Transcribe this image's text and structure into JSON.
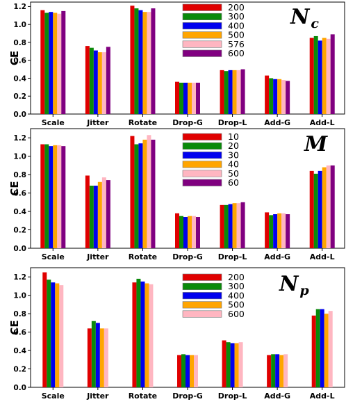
{
  "chart_data": [
    {
      "type": "bar",
      "title_main": "N",
      "title_sub": "c",
      "ylabel": "CE",
      "ylim": [
        0,
        1.25
      ],
      "yticks": [
        "0.0",
        "0.2",
        "0.4",
        "0.6",
        "0.8",
        "1.0",
        "1.2"
      ],
      "categories": [
        "Scale",
        "Jitter",
        "Rotate",
        "Drop-G",
        "Drop-L",
        "Add-G",
        "Add-L"
      ],
      "legend_position": "top-center",
      "series": [
        {
          "name": "200",
          "color": "#e00000",
          "values": [
            1.16,
            0.76,
            1.21,
            0.36,
            0.49,
            0.43,
            0.85
          ]
        },
        {
          "name": "300",
          "color": "#0a8a0a",
          "values": [
            1.13,
            0.74,
            1.18,
            0.35,
            0.48,
            0.4,
            0.87
          ]
        },
        {
          "name": "400",
          "color": "#0000ee",
          "values": [
            1.14,
            0.71,
            1.16,
            0.35,
            0.49,
            0.39,
            0.82
          ]
        },
        {
          "name": "500",
          "color": "#ffa500",
          "values": [
            1.13,
            0.69,
            1.14,
            0.35,
            0.49,
            0.39,
            0.85
          ]
        },
        {
          "name": "576",
          "color": "#ffb6c1",
          "values": [
            1.12,
            0.69,
            1.14,
            0.35,
            0.49,
            0.38,
            0.84
          ]
        },
        {
          "name": "600",
          "color": "#800080",
          "values": [
            1.15,
            0.75,
            1.18,
            0.35,
            0.5,
            0.37,
            0.89
          ]
        }
      ]
    },
    {
      "type": "bar",
      "title_main": "M",
      "title_sub": "",
      "ylabel": "CE",
      "ylim": [
        0,
        1.3
      ],
      "yticks": [
        "0.0",
        "0.2",
        "0.4",
        "0.6",
        "0.8",
        "1.0",
        "1.2"
      ],
      "categories": [
        "Scale",
        "Jitter",
        "Rotate",
        "Drop-G",
        "Drop-L",
        "Add-G",
        "Add-L"
      ],
      "legend_position": "top-center",
      "series": [
        {
          "name": "10",
          "color": "#e00000",
          "values": [
            1.13,
            0.79,
            1.22,
            0.38,
            0.47,
            0.39,
            0.84
          ]
        },
        {
          "name": "20",
          "color": "#0a8a0a",
          "values": [
            1.13,
            0.68,
            1.13,
            0.35,
            0.47,
            0.36,
            0.81
          ]
        },
        {
          "name": "30",
          "color": "#0000ee",
          "values": [
            1.11,
            0.68,
            1.14,
            0.34,
            0.48,
            0.37,
            0.84
          ]
        },
        {
          "name": "40",
          "color": "#ffa500",
          "values": [
            1.12,
            0.72,
            1.18,
            0.35,
            0.49,
            0.38,
            0.88
          ]
        },
        {
          "name": "50",
          "color": "#ffb6c1",
          "values": [
            1.12,
            0.77,
            1.23,
            0.35,
            0.49,
            0.38,
            0.9
          ]
        },
        {
          "name": "60",
          "color": "#800080",
          "values": [
            1.11,
            0.74,
            1.18,
            0.34,
            0.5,
            0.37,
            0.9
          ]
        }
      ]
    },
    {
      "type": "bar",
      "title_main": "N",
      "title_sub": "p",
      "ylabel": "CE",
      "ylim": [
        0,
        1.3
      ],
      "yticks": [
        "0.0",
        "0.2",
        "0.4",
        "0.6",
        "0.8",
        "1.0",
        "1.2"
      ],
      "categories": [
        "Scale",
        "Jitter",
        "Rotate",
        "Drop-G",
        "Drop-L",
        "Add-G",
        "Add-L"
      ],
      "legend_position": "top-center",
      "series": [
        {
          "name": "200",
          "color": "#e00000",
          "values": [
            1.25,
            0.64,
            1.14,
            0.35,
            0.51,
            0.35,
            0.78
          ]
        },
        {
          "name": "300",
          "color": "#0a8a0a",
          "values": [
            1.17,
            0.72,
            1.18,
            0.36,
            0.49,
            0.36,
            0.85
          ]
        },
        {
          "name": "400",
          "color": "#0000ee",
          "values": [
            1.14,
            0.7,
            1.15,
            0.35,
            0.48,
            0.36,
            0.85
          ]
        },
        {
          "name": "500",
          "color": "#ffa500",
          "values": [
            1.13,
            0.64,
            1.13,
            0.35,
            0.48,
            0.35,
            0.8
          ]
        },
        {
          "name": "600",
          "color": "#ffb6c1",
          "values": [
            1.11,
            0.64,
            1.12,
            0.35,
            0.49,
            0.36,
            0.83
          ]
        }
      ]
    }
  ]
}
